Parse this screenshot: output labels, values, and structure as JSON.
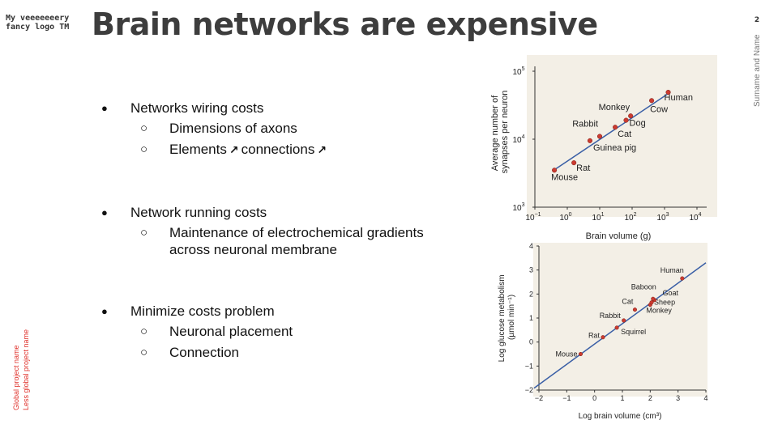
{
  "logo": {
    "line1": "My veeeeeeery",
    "line2": "fancy logo TM"
  },
  "title": "Brain networks are expensive",
  "page_number": "2",
  "author": "Surname and Name",
  "project": {
    "line1": "Global project name",
    "line2": "Less global project name"
  },
  "bullets": {
    "wiring": {
      "label": "Networks wiring costs",
      "sub1": "Dimensions of axons",
      "sub2_a": "Elements",
      "sub2_b": "connections"
    },
    "running": {
      "label": "Network running costs",
      "sub1": "Maintenance of electrochemical gradients across neuronal membrane"
    },
    "minimize": {
      "label": "Minimize costs problem",
      "sub1": "Neuronal placement",
      "sub2": "Connection"
    }
  },
  "chart_data": [
    {
      "type": "scatter",
      "title": "",
      "xlabel": "Brain volume (g)",
      "ylabel": "Average number of synapses per neuron",
      "xscale": "log",
      "yscale": "log",
      "xlim": [
        0.1,
        10000
      ],
      "ylim": [
        1000,
        100000
      ],
      "x_ticks": [
        "10^-1",
        "10^0",
        "10^1",
        "10^2",
        "10^3",
        "10^4"
      ],
      "y_ticks": [
        "10^3",
        "10^4",
        "10^5"
      ],
      "fit_line": {
        "x": [
          0.35,
          1500
        ],
        "y": [
          3400,
          49000
        ]
      },
      "points": [
        {
          "label": "Mouse",
          "x": 0.4,
          "y": 3500
        },
        {
          "label": "Rat",
          "x": 1.6,
          "y": 4500
        },
        {
          "label": "Guinea pig",
          "x": 5,
          "y": 9500
        },
        {
          "label": "Rabbit",
          "x": 10,
          "y": 11000
        },
        {
          "label": "Cat",
          "x": 30,
          "y": 15000
        },
        {
          "label": "Dog",
          "x": 65,
          "y": 19000
        },
        {
          "label": "Monkey",
          "x": 90,
          "y": 22000
        },
        {
          "label": "Cow",
          "x": 400,
          "y": 37000
        },
        {
          "label": "Human",
          "x": 1300,
          "y": 49000
        }
      ],
      "colors": {
        "point": "#cc3b30",
        "line": "#3a5fa6",
        "background": "#f3efe6"
      }
    },
    {
      "type": "scatter",
      "title": "",
      "xlabel": "Log brain volume (cm³)",
      "ylabel": "Log glucose metabolism (µmol min⁻¹)",
      "xlim": [
        -2,
        4
      ],
      "ylim": [
        -2,
        4
      ],
      "x_ticks": [
        "−2",
        "−1",
        "0",
        "1",
        "2",
        "3",
        "4"
      ],
      "y_ticks": [
        "−2",
        "−1",
        "0",
        "1",
        "2",
        "3",
        "4"
      ],
      "fit_line": {
        "x": [
          -2,
          4
        ],
        "y": [
          -1.75,
          3.3
        ]
      },
      "points": [
        {
          "label": "Mouse",
          "x": -0.5,
          "y": -0.5
        },
        {
          "label": "Rat",
          "x": 0.3,
          "y": 0.2
        },
        {
          "label": "Squirrel",
          "x": 0.8,
          "y": 0.6
        },
        {
          "label": "Rabbit",
          "x": 1.05,
          "y": 0.9
        },
        {
          "label": "Cat",
          "x": 1.45,
          "y": 1.35
        },
        {
          "label": "Monkey",
          "x": 2.0,
          "y": 1.55
        },
        {
          "label": "Sheep",
          "x": 2.05,
          "y": 1.65
        },
        {
          "label": "Goat",
          "x": 2.15,
          "y": 1.75
        },
        {
          "label": "Baboon",
          "x": 2.1,
          "y": 1.8
        },
        {
          "label": "Human",
          "x": 3.15,
          "y": 2.65
        }
      ],
      "colors": {
        "point": "#cc3b30",
        "line": "#3a5fa6",
        "background": "#f3efe6"
      }
    }
  ]
}
